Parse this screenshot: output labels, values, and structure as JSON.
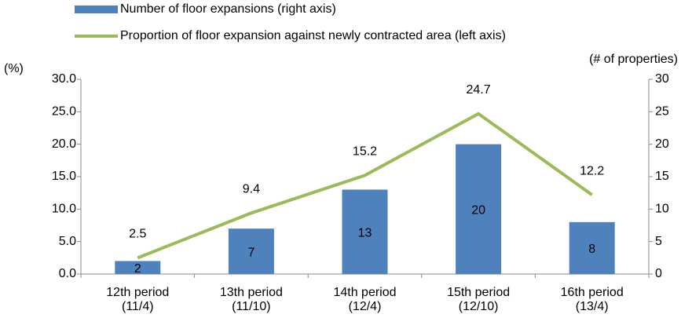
{
  "chart_data": {
    "type": "combo",
    "categories": [
      "12th period (11/4)",
      "13th period (11/10)",
      "14th period (12/4)",
      "15th period (12/10)",
      "16th period (13/4)"
    ],
    "series": [
      {
        "name": "Number of floor expansions (right axis)",
        "type": "bar",
        "axis": "y2",
        "color": "#4f81bd",
        "values": [
          2,
          7,
          13,
          20,
          8
        ]
      },
      {
        "name": "Proportion of floor expansion against newly contracted area (left axis)",
        "type": "line",
        "axis": "y",
        "color": "#9bbb59",
        "values": [
          2.5,
          9.4,
          15.2,
          24.7,
          12.2
        ]
      }
    ],
    "ylabel": "(%)",
    "y2label": "(# of properties)",
    "ylim": [
      0,
      30
    ],
    "yticks": [
      {
        "value": 0,
        "label": "0.0"
      },
      {
        "value": 5,
        "label": "5.0"
      },
      {
        "value": 10,
        "label": "10.0"
      },
      {
        "value": 15,
        "label": "15.0"
      },
      {
        "value": 20,
        "label": "20.0"
      },
      {
        "value": 25,
        "label": "25.0"
      },
      {
        "value": 30,
        "label": "30.0"
      }
    ],
    "y2lim": [
      0,
      30
    ],
    "y2ticks": [
      0,
      5,
      10,
      15,
      20,
      25,
      30
    ],
    "grid": false
  }
}
